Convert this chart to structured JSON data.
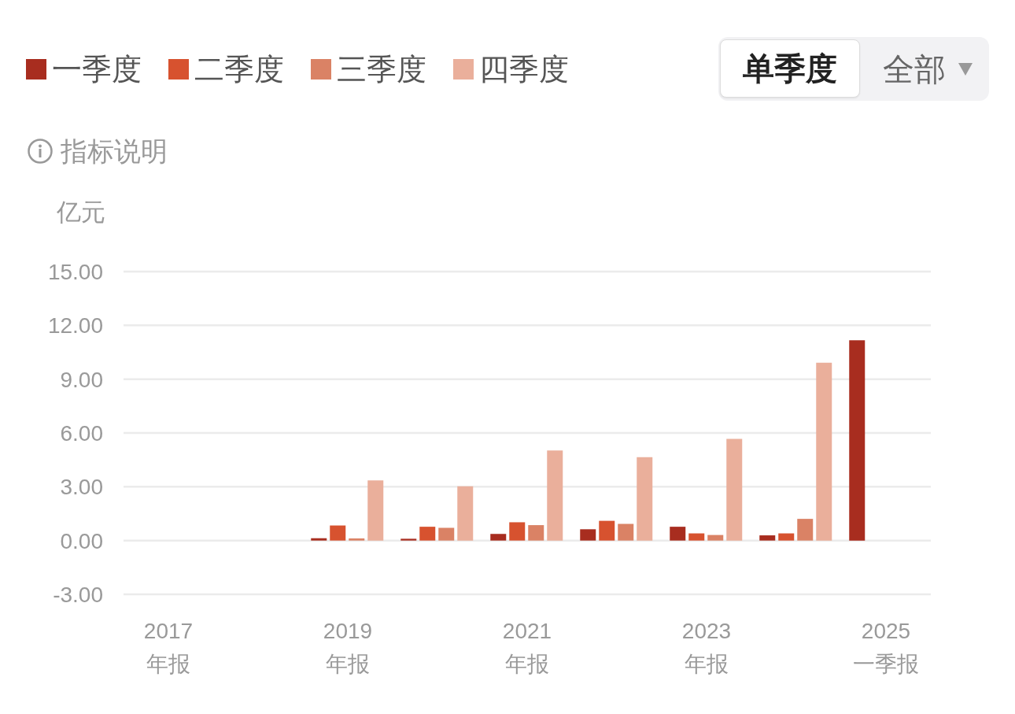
{
  "chart_data": {
    "type": "bar",
    "ylabel": "亿元",
    "annotations": [
      "指标说明",
      "单季度",
      "全部"
    ],
    "categories": [
      "2017\n年报",
      null,
      "2019\n年报",
      null,
      "2021\n年报",
      null,
      "2023\n年报",
      null,
      "2025\n一季报"
    ],
    "series": [
      {
        "name": "一季度",
        "color": "#a82d1f",
        "values": [
          null,
          null,
          0.13,
          0.1,
          0.37,
          0.63,
          0.77,
          0.29,
          11.17
        ]
      },
      {
        "name": "二季度",
        "color": "#d7522f",
        "values": [
          null,
          null,
          0.84,
          0.77,
          1.02,
          1.1,
          0.4,
          0.4,
          null
        ]
      },
      {
        "name": "三季度",
        "color": "#da8265",
        "values": [
          null,
          null,
          0.12,
          0.71,
          0.86,
          0.93,
          0.31,
          1.21,
          null
        ]
      },
      {
        "name": "四季度",
        "color": "#eaaf9b",
        "values": [
          null,
          null,
          3.35,
          3.03,
          5.02,
          4.65,
          5.67,
          9.92,
          null
        ]
      }
    ],
    "ylim": [
      -3,
      15
    ],
    "yticks": [
      {
        "value": -3,
        "label": "-3.00"
      },
      {
        "value": 0,
        "label": "0.00"
      },
      {
        "value": 3,
        "label": "3.00"
      },
      {
        "value": 6,
        "label": "6.00"
      },
      {
        "value": 9,
        "label": "9.00"
      },
      {
        "value": 12,
        "label": "12.00"
      },
      {
        "value": 15,
        "label": "15.00"
      }
    ],
    "grid": "y",
    "legend": "top left"
  }
}
